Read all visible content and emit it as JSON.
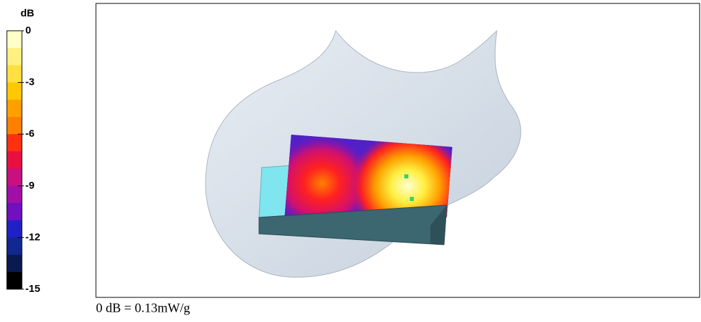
{
  "colorbar": {
    "title": "dB",
    "ticks": [
      0,
      -3,
      -6,
      -9,
      -12,
      -15
    ]
  },
  "caption": "0 dB = 0.13mW/g"
}
